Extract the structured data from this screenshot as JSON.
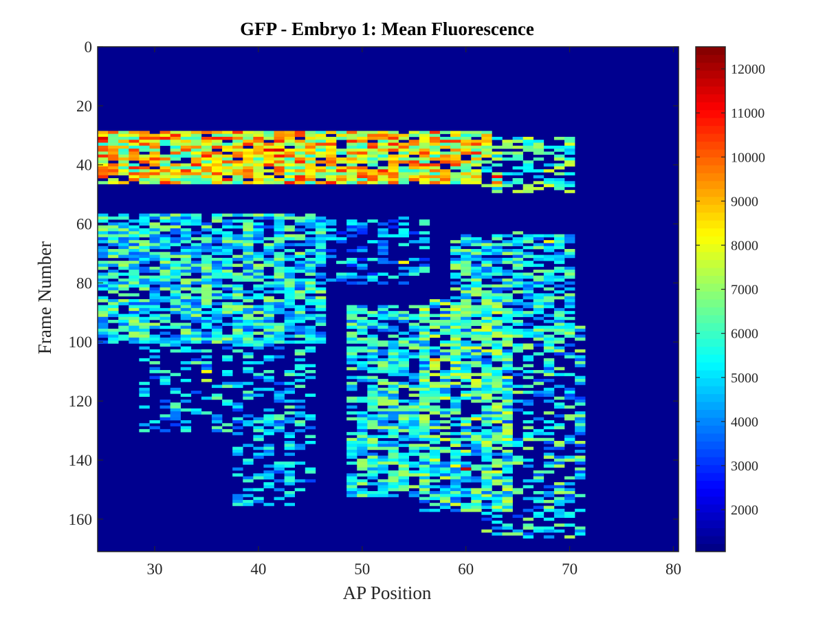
{
  "chart_data": {
    "type": "heatmap",
    "title": "GFP - Embryo 1: Mean Fluorescence",
    "xlabel": "AP Position",
    "ylabel": "Frame Number",
    "xlim": [
      24.5,
      80.5
    ],
    "ylim": [
      0,
      171
    ],
    "y_reversed": true,
    "x_ticks": [
      30,
      40,
      50,
      60,
      70,
      80
    ],
    "y_ticks": [
      0,
      20,
      40,
      60,
      80,
      100,
      120,
      140,
      160
    ],
    "colormap": "jet",
    "background_value": 1050,
    "color_range": [
      1050,
      12500
    ],
    "colorbar_ticks": [
      2000,
      3000,
      4000,
      5000,
      6000,
      7000,
      8000,
      9000,
      10000,
      11000,
      12000
    ],
    "background_color": "#00008f",
    "bands": [
      {
        "x0": 25,
        "x1": 62,
        "y0": 29,
        "y1": 46,
        "x1_bottom": 61,
        "density": 0.88,
        "level": [
          0.4,
          0.85
        ],
        "note": "upper bright band"
      },
      {
        "x0": 62,
        "x1": 70,
        "y0": 31,
        "y1": 49,
        "density": 0.55,
        "level": [
          0.3,
          0.6
        ]
      },
      {
        "x0": 25,
        "x1": 46,
        "y0": 57,
        "y1": 100,
        "density": 0.78,
        "level": [
          0.2,
          0.55
        ]
      },
      {
        "x0": 29,
        "x1": 45,
        "y0": 100,
        "y1": 130,
        "density": 0.3,
        "level": [
          0.18,
          0.5
        ]
      },
      {
        "x0": 38,
        "x1": 45,
        "y0": 125,
        "y1": 155,
        "density": 0.38,
        "level": [
          0.18,
          0.45
        ]
      },
      {
        "x0": 45,
        "x1": 56,
        "y0": 58,
        "y1": 80,
        "density": 0.35,
        "level": [
          0.15,
          0.45
        ]
      },
      {
        "x0": 49,
        "x1": 56,
        "y0": 88,
        "y1": 152,
        "density": 0.72,
        "level": [
          0.22,
          0.55
        ]
      },
      {
        "x0": 56,
        "x1": 64,
        "y0": 86,
        "y1": 157,
        "density": 0.72,
        "level": [
          0.2,
          0.6
        ]
      },
      {
        "x0": 59,
        "x1": 70,
        "y0": 64,
        "y1": 98,
        "density": 0.7,
        "level": [
          0.2,
          0.55
        ]
      },
      {
        "x0": 62,
        "x1": 71,
        "y0": 95,
        "y1": 166,
        "density": 0.42,
        "level": [
          0.18,
          0.55
        ]
      }
    ],
    "hotspots": [
      {
        "x": 25,
        "y": 31,
        "value": 11500
      },
      {
        "x": 26,
        "y": 35,
        "value": 9500
      },
      {
        "x": 27,
        "y": 32,
        "value": 9000
      },
      {
        "x": 28,
        "y": 36,
        "value": 9500
      },
      {
        "x": 30,
        "y": 33,
        "value": 9200
      },
      {
        "x": 33,
        "y": 34,
        "value": 9300
      },
      {
        "x": 35,
        "y": 32,
        "value": 8800
      },
      {
        "x": 37,
        "y": 37,
        "value": 8600
      },
      {
        "x": 41,
        "y": 35,
        "value": 11200
      },
      {
        "x": 42,
        "y": 35,
        "value": 11500
      },
      {
        "x": 42,
        "y": 37,
        "value": 10800
      },
      {
        "x": 45,
        "y": 36,
        "value": 9200
      },
      {
        "x": 52,
        "y": 35,
        "value": 9000
      },
      {
        "x": 55,
        "y": 41,
        "value": 9000
      },
      {
        "x": 63,
        "y": 44,
        "value": 11000
      },
      {
        "x": 63,
        "y": 46,
        "value": 9800
      },
      {
        "x": 35,
        "y": 110,
        "value": 8200
      },
      {
        "x": 35,
        "y": 113,
        "value": 7500
      },
      {
        "x": 54,
        "y": 73,
        "value": 8300
      },
      {
        "x": 57,
        "y": 106,
        "value": 9000
      },
      {
        "x": 60,
        "y": 143,
        "value": 11800
      },
      {
        "x": 59,
        "y": 142,
        "value": 8200
      },
      {
        "x": 61,
        "y": 126,
        "value": 8400
      },
      {
        "x": 60,
        "y": 118,
        "value": 7600
      },
      {
        "x": 68,
        "y": 66,
        "value": 8200
      },
      {
        "x": 66,
        "y": 160,
        "value": 7000
      },
      {
        "x": 65,
        "y": 63,
        "value": 6800
      }
    ]
  }
}
